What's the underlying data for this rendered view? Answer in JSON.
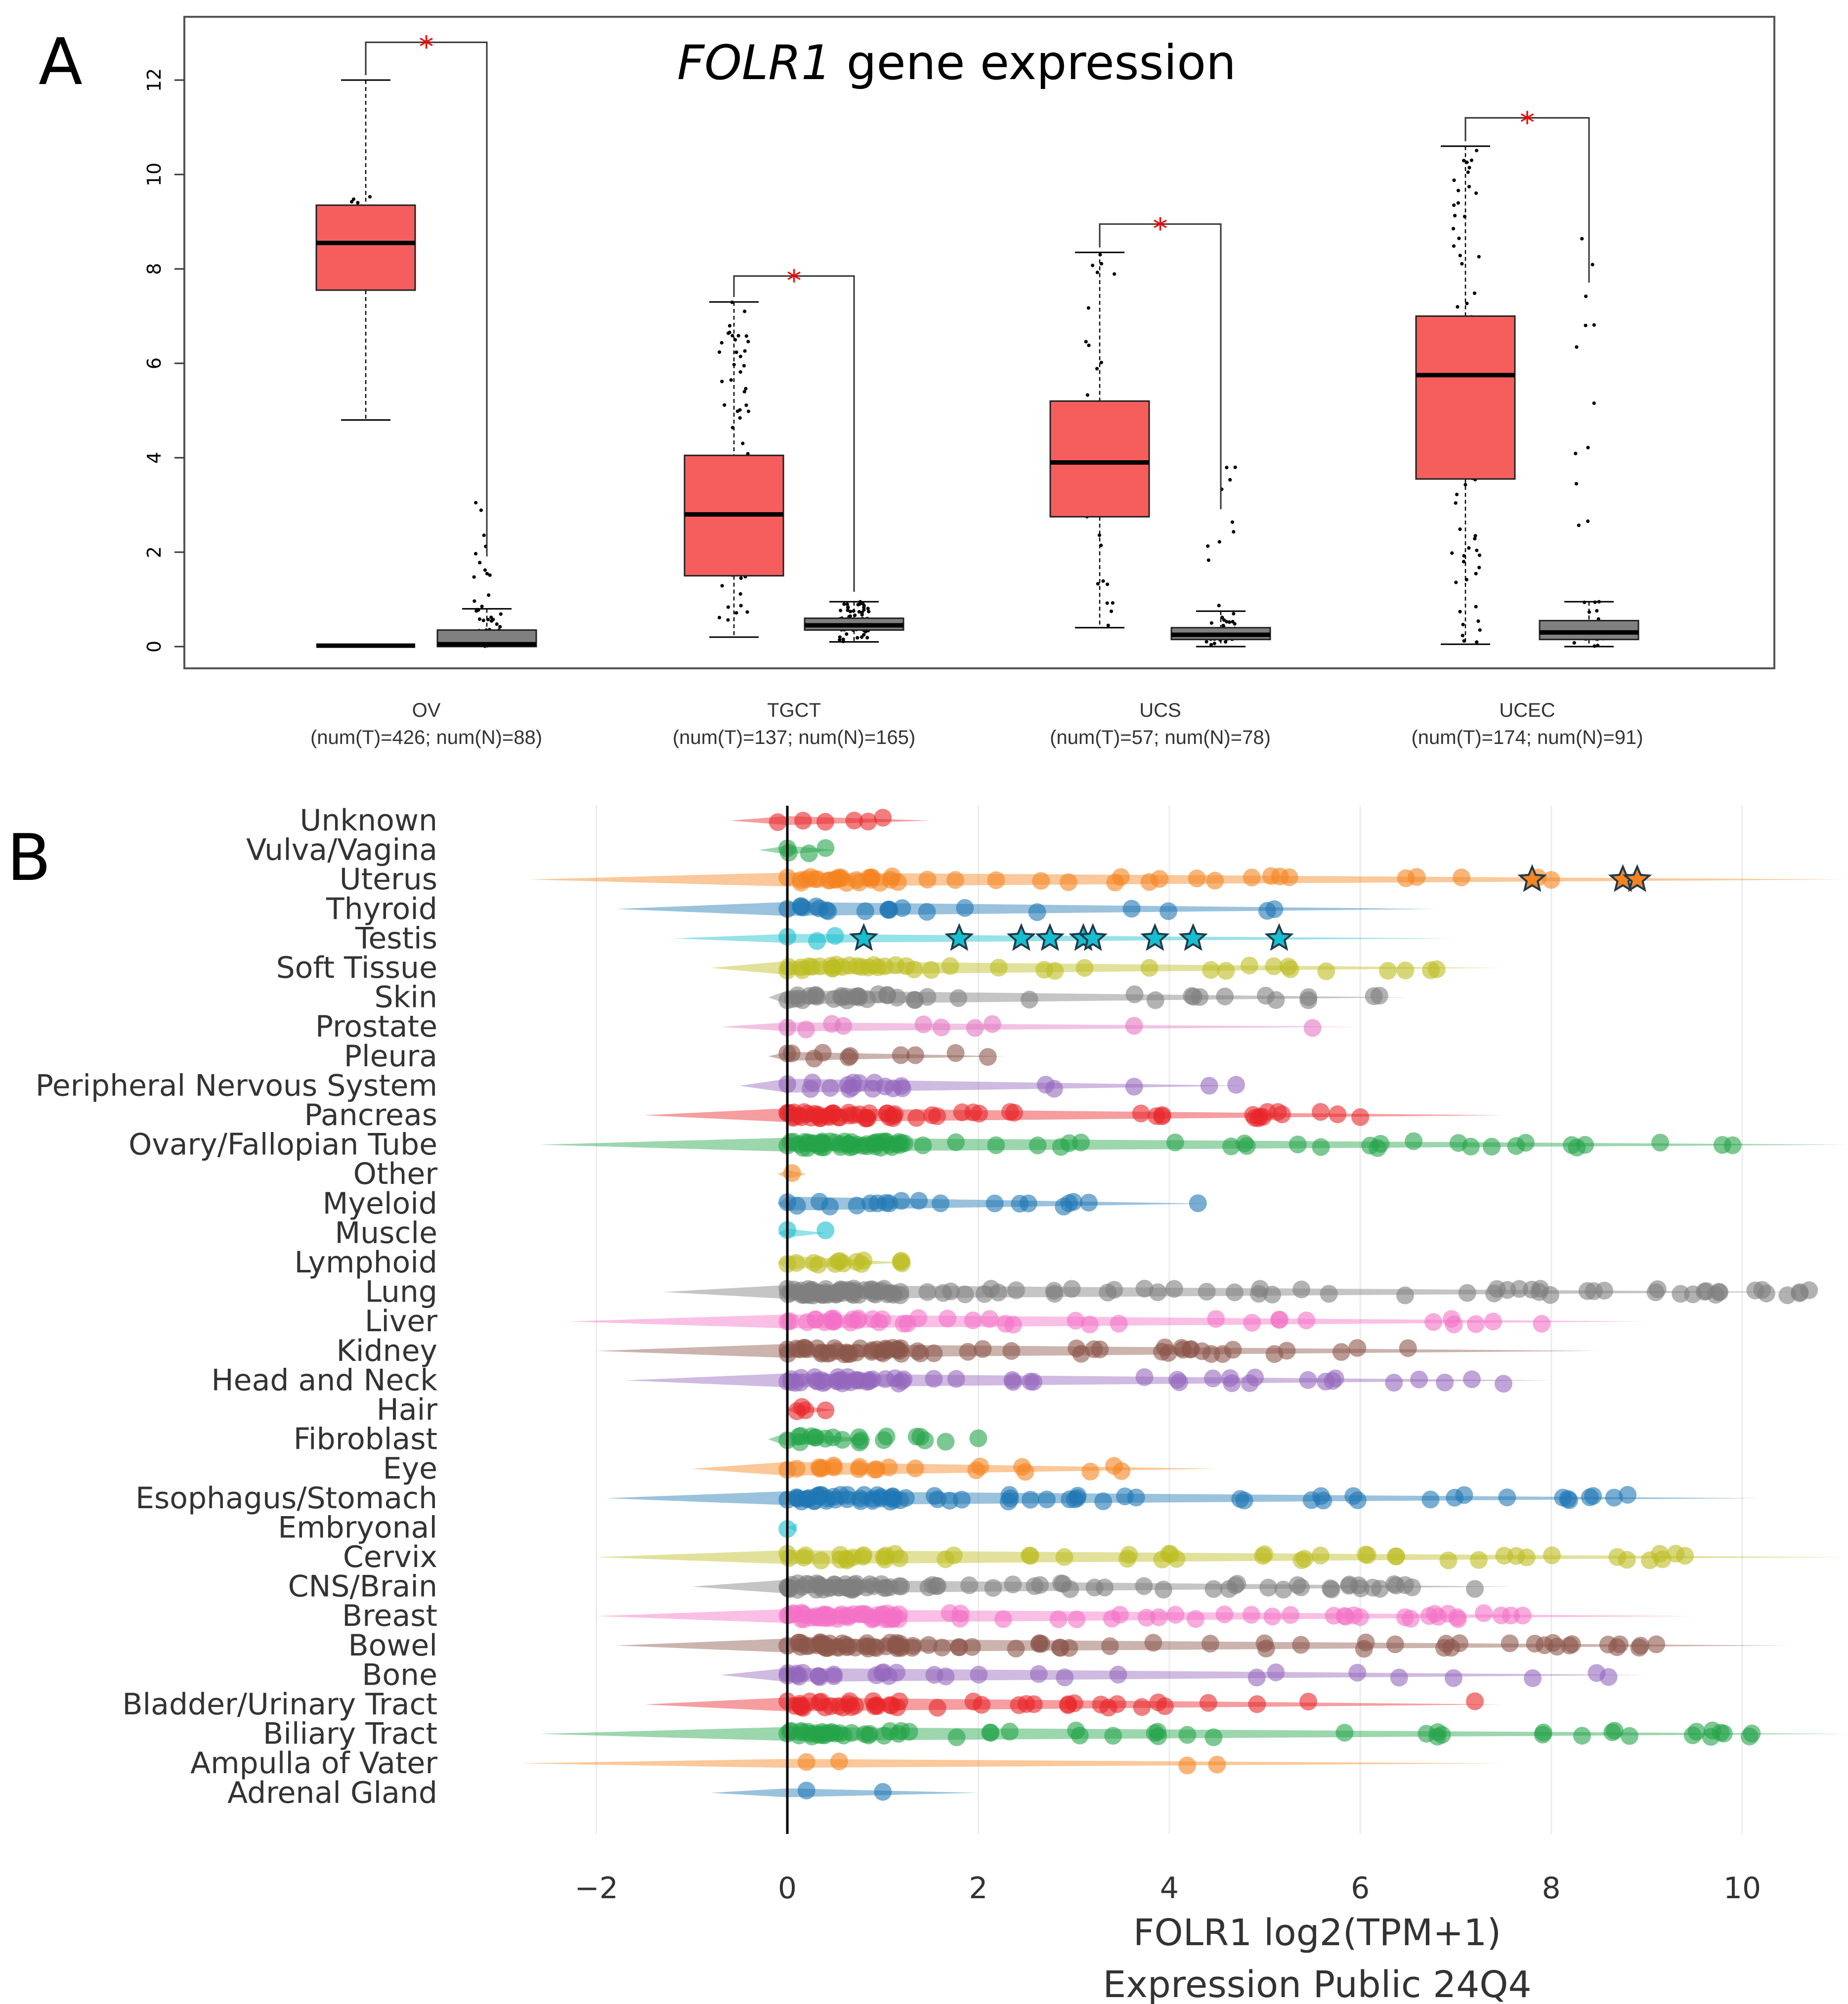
{
  "figure": {
    "panel_a_letter": "A",
    "panel_b_letter": "B"
  },
  "chart_data": [
    {
      "type": "box",
      "title_gene": "FOLR1",
      "title_rest": " gene expression",
      "ylim": [
        0,
        13
      ],
      "yticks": [
        0,
        2,
        4,
        6,
        8,
        10,
        12
      ],
      "significance_marker": "*",
      "colors": {
        "tumor": "#f65e5e",
        "normal": "#808080"
      },
      "groups": [
        {
          "name": "OV",
          "counts": "(num(T)=426; num(N)=88)",
          "tumor": {
            "min": 4.8,
            "q1": 7.55,
            "median": 8.55,
            "q3": 9.35,
            "max": 12.0,
            "n_points": 420,
            "spread": [
              2.4,
              12.2
            ]
          },
          "normal": {
            "min": 0.0,
            "q1": 0.0,
            "median": 0.05,
            "q3": 0.35,
            "max": 0.8,
            "n_points": 60,
            "spread": [
              0,
              3.2
            ]
          },
          "tumor_box_override": {
            "q1": 0.0,
            "median": 0.02,
            "q3": 0.04
          },
          "bracket_top": 12.8
        },
        {
          "name": "TGCT",
          "counts": "(num(T)=137; num(N)=165)",
          "tumor": {
            "min": 0.2,
            "q1": 1.5,
            "median": 2.8,
            "q3": 4.05,
            "max": 7.3,
            "n_points": 137,
            "spread": [
              0.2,
              7.3
            ]
          },
          "normal": {
            "min": 0.1,
            "q1": 0.35,
            "median": 0.45,
            "q3": 0.6,
            "max": 0.95,
            "n_points": 120,
            "spread": [
              0.1,
              0.95
            ]
          },
          "bracket_top": 7.85
        },
        {
          "name": "UCS",
          "counts": "(num(T)=57; num(N)=78)",
          "tumor": {
            "min": 0.4,
            "q1": 2.75,
            "median": 3.9,
            "q3": 5.2,
            "max": 8.35,
            "n_points": 57,
            "spread": [
              0.4,
              8.35
            ]
          },
          "normal": {
            "min": 0.0,
            "q1": 0.15,
            "median": 0.25,
            "q3": 0.4,
            "max": 0.75,
            "n_points": 60,
            "spread": [
              0,
              4.2
            ]
          },
          "bracket_top": 8.95
        },
        {
          "name": "UCEC",
          "counts": "(num(T)=174; num(N)=91)",
          "tumor": {
            "min": 0.05,
            "q1": 3.55,
            "median": 5.75,
            "q3": 7.0,
            "max": 10.6,
            "n_points": 174,
            "spread": [
              0.05,
              10.6
            ]
          },
          "normal": {
            "min": 0.0,
            "q1": 0.15,
            "median": 0.3,
            "q3": 0.55,
            "max": 0.95,
            "n_points": 80,
            "spread": [
              0,
              9.0
            ]
          },
          "bracket_top": 11.2
        }
      ]
    },
    {
      "type": "violin-strip",
      "xlabel_line1": "FOLR1 log2(TPM+1)",
      "xlabel_line2": "Expression Public 24Q4",
      "xlim": [
        -2.6,
        11.1
      ],
      "xticks": [
        -2,
        0,
        2,
        4,
        6,
        8,
        10
      ],
      "tick_labels": [
        "−2",
        "0",
        "2",
        "4",
        "6",
        "8",
        "10"
      ],
      "categories": [
        {
          "name": "Unknown",
          "color": "#e8262a",
          "vmin": -0.6,
          "vmax": 1.5,
          "n": 6,
          "spread": [
            -0.1,
            1.0
          ]
        },
        {
          "name": "Vulva/Vagina",
          "color": "#24a34a",
          "vmin": -0.3,
          "vmax": 0.5,
          "n": 4,
          "spread": [
            0,
            0.4
          ]
        },
        {
          "name": "Uterus",
          "color": "#f5841f",
          "vmin": -2.7,
          "vmax": 11.1,
          "n": 45,
          "spread": [
            0,
            8.0
          ],
          "stars": [
            7.8,
            8.75,
            8.9
          ]
        },
        {
          "name": "Thyroid",
          "color": "#1f77b4",
          "vmin": -1.8,
          "vmax": 6.8,
          "n": 20,
          "spread": [
            0,
            5.1
          ]
        },
        {
          "name": "Testis",
          "color": "#17becf",
          "vmin": -1.2,
          "vmax": 7.0,
          "n": 3,
          "spread": [
            0,
            0.5
          ],
          "stars": [
            0.8,
            1.8,
            2.45,
            2.75,
            3.1,
            3.2,
            3.85,
            4.25,
            5.15
          ]
        },
        {
          "name": "Soft Tissue",
          "color": "#bcbd22",
          "vmin": -0.8,
          "vmax": 7.5,
          "n": 40,
          "spread": [
            0,
            6.8
          ]
        },
        {
          "name": "Skin",
          "color": "#7f7f7f",
          "vmin": -0.2,
          "vmax": 6.5,
          "n": 40,
          "spread": [
            0,
            6.2
          ]
        },
        {
          "name": "Prostate",
          "color": "#e377c2",
          "vmin": -0.7,
          "vmax": 6.0,
          "n": 10,
          "spread": [
            0,
            5.5
          ]
        },
        {
          "name": "Pleura",
          "color": "#8c564b",
          "vmin": -0.2,
          "vmax": 2.3,
          "n": 10,
          "spread": [
            0,
            2.1
          ]
        },
        {
          "name": "Peripheral Nervous System",
          "color": "#9467bd",
          "vmin": -0.5,
          "vmax": 4.8,
          "n": 20,
          "spread": [
            0,
            4.7
          ]
        },
        {
          "name": "Pancreas",
          "color": "#e8262a",
          "vmin": -1.5,
          "vmax": 7.5,
          "n": 60,
          "spread": [
            0,
            6.0
          ]
        },
        {
          "name": "Ovary/Fallopian Tube",
          "color": "#24a34a",
          "vmin": -2.6,
          "vmax": 11.1,
          "n": 75,
          "spread": [
            0,
            9.9
          ]
        },
        {
          "name": "Other",
          "color": "#f5841f",
          "vmin": -0.1,
          "vmax": 0.2,
          "n": 1,
          "spread": [
            0.05,
            0.05
          ]
        },
        {
          "name": "Myeloid",
          "color": "#1f77b4",
          "vmin": -0.1,
          "vmax": 4.4,
          "n": 20,
          "spread": [
            0,
            4.3
          ]
        },
        {
          "name": "Muscle",
          "color": "#17becf",
          "vmin": -0.1,
          "vmax": 0.4,
          "n": 2,
          "spread": [
            0,
            0.4
          ]
        },
        {
          "name": "Lymphoid",
          "color": "#bcbd22",
          "vmin": -0.1,
          "vmax": 1.2,
          "n": 14,
          "spread": [
            0,
            1.2
          ]
        },
        {
          "name": "Lung",
          "color": "#7f7f7f",
          "vmin": -1.3,
          "vmax": 10.8,
          "n": 110,
          "spread": [
            0,
            10.7
          ]
        },
        {
          "name": "Liver",
          "color": "#f472c6",
          "vmin": -2.3,
          "vmax": 9.0,
          "n": 40,
          "spread": [
            0,
            7.9
          ]
        },
        {
          "name": "Kidney",
          "color": "#8c564b",
          "vmin": -2.0,
          "vmax": 8.5,
          "n": 60,
          "spread": [
            0,
            6.5
          ]
        },
        {
          "name": "Head and Neck",
          "color": "#9467bd",
          "vmin": -1.7,
          "vmax": 8.0,
          "n": 55,
          "spread": [
            0,
            7.5
          ]
        },
        {
          "name": "Hair",
          "color": "#e8262a",
          "vmin": 0.0,
          "vmax": 0.5,
          "n": 4,
          "spread": [
            0.1,
            0.4
          ]
        },
        {
          "name": "Fibroblast",
          "color": "#24a34a",
          "vmin": -0.2,
          "vmax": 0.9,
          "n": 20,
          "spread": [
            0,
            2.0
          ]
        },
        {
          "name": "Eye",
          "color": "#f5841f",
          "vmin": -1.0,
          "vmax": 4.5,
          "n": 20,
          "spread": [
            0,
            3.5
          ]
        },
        {
          "name": "Esophagus/Stomach",
          "color": "#1f77b4",
          "vmin": -1.9,
          "vmax": 10.2,
          "n": 70,
          "spread": [
            0,
            8.8
          ]
        },
        {
          "name": "Embryonal",
          "color": "#17becf",
          "vmin": 0.0,
          "vmax": 0.1,
          "n": 1,
          "spread": [
            0,
            0
          ]
        },
        {
          "name": "Cervix",
          "color": "#bcbd22",
          "vmin": -2.0,
          "vmax": 11.1,
          "n": 50,
          "spread": [
            0,
            9.4
          ]
        },
        {
          "name": "CNS/Brain",
          "color": "#7f7f7f",
          "vmin": -1.0,
          "vmax": 7.6,
          "n": 80,
          "spread": [
            0,
            7.2
          ]
        },
        {
          "name": "Breast",
          "color": "#f472c6",
          "vmin": -2.0,
          "vmax": 9.5,
          "n": 80,
          "spread": [
            0,
            7.7
          ]
        },
        {
          "name": "Bowel",
          "color": "#8c564b",
          "vmin": -1.8,
          "vmax": 10.5,
          "n": 80,
          "spread": [
            0,
            9.1
          ]
        },
        {
          "name": "Bone",
          "color": "#9467bd",
          "vmin": -0.7,
          "vmax": 9.0,
          "n": 30,
          "spread": [
            0,
            8.6
          ]
        },
        {
          "name": "Bladder/Urinary Tract",
          "color": "#e8262a",
          "vmin": -1.5,
          "vmax": 7.5,
          "n": 45,
          "spread": [
            0,
            7.2
          ]
        },
        {
          "name": "Biliary Tract",
          "color": "#24a34a",
          "vmin": -2.6,
          "vmax": 11.1,
          "n": 60,
          "spread": [
            0,
            10.1
          ]
        },
        {
          "name": "Ampulla of Vater",
          "color": "#f5841f",
          "vmin": -2.8,
          "vmax": 7.5,
          "n": 4,
          "spread": [
            0.2,
            4.5
          ]
        },
        {
          "name": "Adrenal Gland",
          "color": "#1f77b4",
          "vmin": -0.8,
          "vmax": 2.0,
          "n": 2,
          "spread": [
            0.2,
            1.0
          ]
        }
      ]
    }
  ]
}
